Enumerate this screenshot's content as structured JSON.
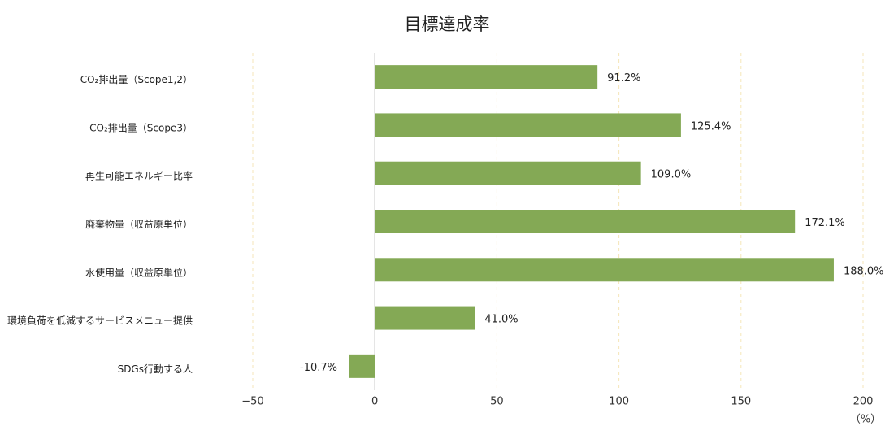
{
  "chart_data": {
    "type": "bar",
    "orientation": "horizontal",
    "title": "目標達成率",
    "x_axis_label": "（%）",
    "categories": [
      "CO₂排出量（Scope1,2）",
      "CO₂排出量（Scope3）",
      "再生可能エネルギー比率",
      "廃棄物量（収益原単位）",
      "水使用量（収益原単位）",
      "環境負荷を低減するサービスメニュー提供",
      "SDGs行動する人"
    ],
    "values": [
      91.2,
      125.4,
      109.0,
      172.1,
      188.0,
      41.0,
      -10.7
    ],
    "value_labels": [
      "91.2%",
      "125.4%",
      "109.0%",
      "172.1%",
      "188.0%",
      "41.0%",
      "-10.7%"
    ],
    "color": "#84a955",
    "xlim": [
      -50,
      200
    ],
    "xticks": [
      {
        "value": -50,
        "label": "−50"
      },
      0,
      50,
      100,
      150,
      200
    ],
    "grid": true
  }
}
